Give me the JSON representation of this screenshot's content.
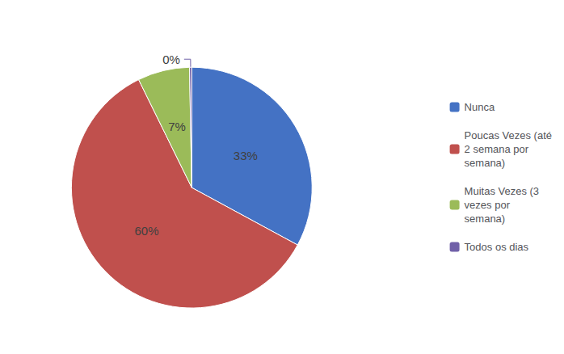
{
  "chart_data": {
    "type": "pie",
    "categories": [
      "Nunca",
      "Poucas Vezes (até\n2 semana por\nsemana)",
      "Muitas Vezes (3\nvezes por\nsemana)",
      "Todos os dias"
    ],
    "values": [
      33,
      60,
      7,
      0.3
    ],
    "value_labels": [
      "33%",
      "60%",
      "7%",
      "0%"
    ],
    "colors": [
      "#4472C4",
      "#C0504D",
      "#9BBB59",
      "#7060A8"
    ],
    "data_labels": true,
    "legend": "right"
  }
}
